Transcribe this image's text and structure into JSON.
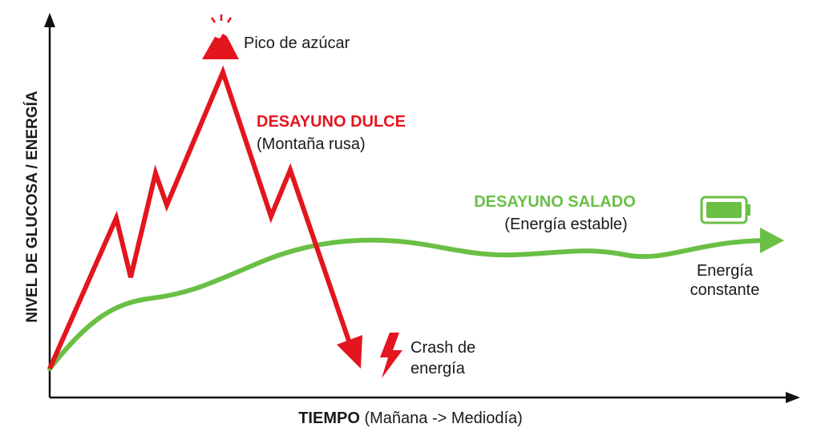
{
  "axes": {
    "y_label": "NIVEL DE GLUCOSA / ENERGÍA",
    "x_label": "TIEMPO",
    "x_sublabel": "(Mañana -> Mediodía)"
  },
  "peak": {
    "label": "Pico de azúcar"
  },
  "sweet": {
    "title": "DESAYUNO DULCE",
    "subtitle": "(Montaña rusa)"
  },
  "savory": {
    "title": "DESAYUNO SALADO",
    "subtitle": "(Energía estable)"
  },
  "crash": {
    "lines": [
      "Crash de",
      "energía"
    ]
  },
  "constant": {
    "lines": [
      "Energía",
      "constante"
    ]
  }
}
